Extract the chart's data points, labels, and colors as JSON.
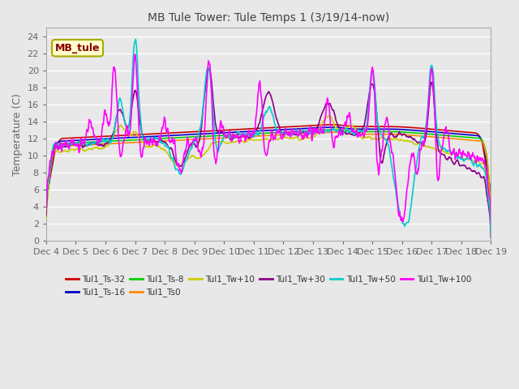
{
  "title": "MB Tule Tower: Tule Temps 1 (3/19/14-now)",
  "ylabel": "Temperature (C)",
  "ylim": [
    0,
    25
  ],
  "yticks": [
    0,
    2,
    4,
    6,
    8,
    10,
    12,
    14,
    16,
    18,
    20,
    22,
    24
  ],
  "xtick_labels": [
    "Dec 4",
    "Dec 5",
    "Dec 6",
    "Dec 7",
    "Dec 8",
    "Dec 9",
    "Dec 10",
    "Dec 11",
    "Dec 12",
    "Dec 13",
    "Dec 14",
    "Dec 15",
    "Dec 16",
    "Dec 17",
    "Dec 18",
    "Dec 19"
  ],
  "series_colors": [
    "#cc0000",
    "#0000cc",
    "#00cc00",
    "#ff8800",
    "#cccc00",
    "#880088",
    "#00cccc",
    "#ff00ff"
  ],
  "series_labels": [
    "Tul1_Ts-32",
    "Tul1_Ts-16",
    "Tul1_Ts-8",
    "Tul1_Ts0",
    "Tul1_Tw+10",
    "Tul1_Tw+30",
    "Tul1_Tw+50",
    "Tul1_Tw+100"
  ],
  "legend_box_facecolor": "#ffffcc",
  "legend_box_edgecolor": "#aaaa00",
  "legend_text": "MB_tule",
  "legend_text_color": "#880000",
  "fig_facecolor": "#e8e8e8",
  "ax_facecolor": "#e8e8e8",
  "grid_color": "#ffffff",
  "title_color": "#444444",
  "tick_color": "#666666",
  "linewidth": 1.2
}
